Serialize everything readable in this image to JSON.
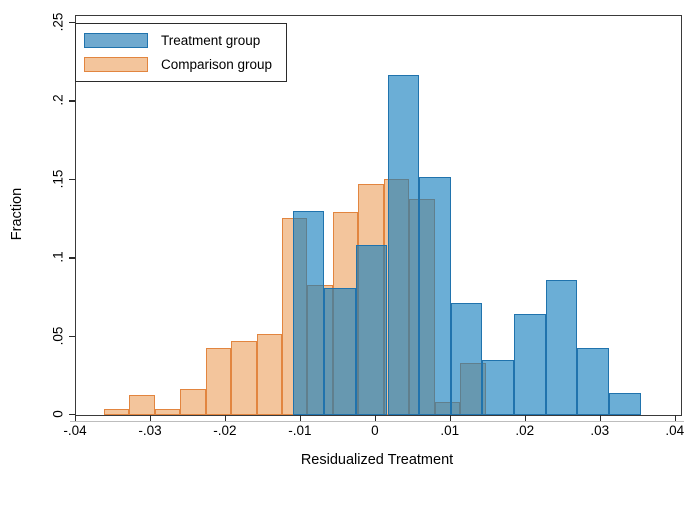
{
  "chart_data": {
    "type": "bar",
    "subtype": "overlaid_histogram",
    "title": "",
    "xlabel": "Residualized Treatment",
    "ylabel": "Fraction",
    "xlim": [
      -0.04,
      0.0407
    ],
    "ylim": [
      0,
      0.2545
    ],
    "grid": false,
    "x_ticks": [
      -0.04,
      -0.03,
      -0.02,
      -0.01,
      0,
      0.01,
      0.02,
      0.03,
      0.04
    ],
    "x_tick_labels": [
      "-.04",
      "-.03",
      "-.02",
      "-.01",
      "0",
      ".01",
      ".02",
      ".03",
      ".04"
    ],
    "y_ticks": [
      0,
      0.05,
      0.1,
      0.15,
      0.2,
      0.25
    ],
    "y_tick_labels": [
      "0",
      ".05",
      ".1",
      ".15",
      ".2",
      ".25"
    ],
    "legend": {
      "position": "top-left",
      "entries": [
        {
          "label": "Treatment group",
          "swatch_fill": "#6fa9cf",
          "swatch_border": "#2073ad"
        },
        {
          "label": "Comparison group",
          "swatch_fill": "#f3c59c",
          "swatch_border": "#e2853f"
        }
      ]
    },
    "series": [
      {
        "name": "Comparison group",
        "bin_start": -0.03633,
        "bin_width": 0.0034,
        "fractions": [
          0.004,
          0.0125,
          0.004,
          0.0167,
          0.0427,
          0.047,
          0.0518,
          0.1255,
          0.0832,
          0.1295,
          0.1471,
          0.1506,
          0.1376,
          0.0086,
          0.0331
        ],
        "fill": "#f3c59c",
        "border": "#e2853f",
        "z": 1
      },
      {
        "name": "Treatment group",
        "bin_start": -0.01111,
        "bin_width": 0.00422,
        "fractions": [
          0.1303,
          0.081,
          0.1085,
          0.2168,
          0.1518,
          0.0715,
          0.0353,
          0.0647,
          0.0864,
          0.0427,
          0.0139
        ],
        "fill": "rgba(16,124,189,0.62)",
        "border": "#2073ad",
        "z": 2
      }
    ]
  }
}
